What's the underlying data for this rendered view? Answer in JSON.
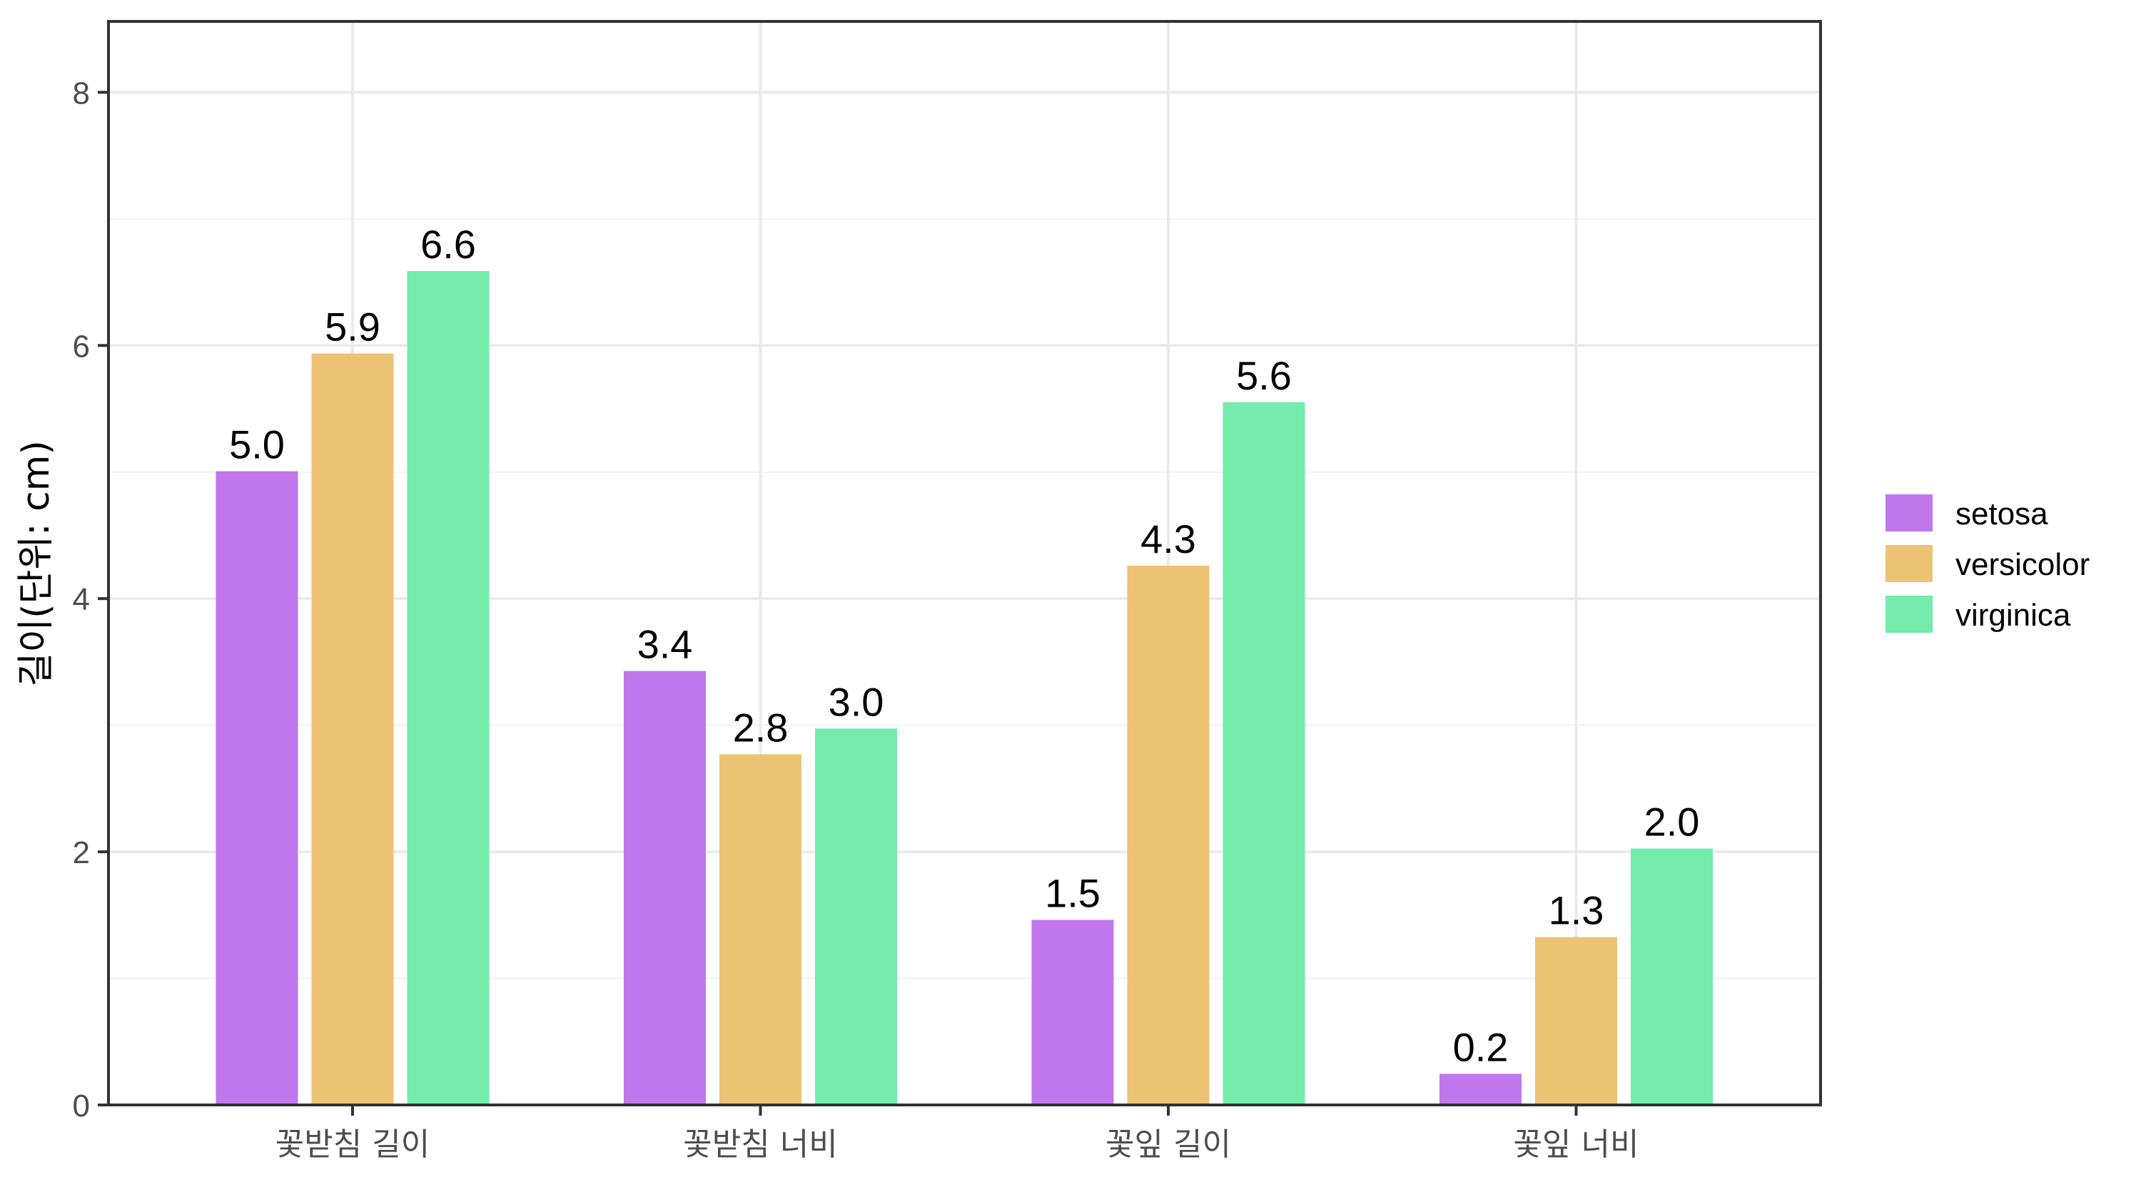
{
  "chart_data": {
    "type": "bar",
    "title": "",
    "xlabel": "",
    "ylabel": "길이(단위: cm)",
    "categories": [
      "꽃받침 길이",
      "꽃받침 너비",
      "꽃잎 길이",
      "꽃잎 너비"
    ],
    "series": [
      {
        "name": "setosa",
        "color": "#C077EC",
        "values": [
          5.006,
          3.428,
          1.462,
          0.246
        ],
        "labels": [
          "5.0",
          "3.4",
          "1.5",
          "0.2"
        ]
      },
      {
        "name": "versicolor",
        "color": "#ECC273",
        "values": [
          5.936,
          2.77,
          4.26,
          1.326
        ],
        "labels": [
          "5.9",
          "2.8",
          "4.3",
          "1.3"
        ]
      },
      {
        "name": "virginica",
        "color": "#73ECAC",
        "values": [
          6.588,
          2.974,
          5.552,
          2.026
        ],
        "labels": [
          "6.6",
          "3.0",
          "5.6",
          "2.0"
        ]
      }
    ],
    "ylim": [
      0,
      8.56
    ],
    "yticks": [
      0,
      2,
      4,
      6,
      8
    ],
    "grid": true,
    "legend_position": "right"
  },
  "legend": {
    "items": [
      {
        "label": "setosa",
        "color": "#C077EC"
      },
      {
        "label": "versicolor",
        "color": "#ECC273"
      },
      {
        "label": "virginica",
        "color": "#73ECAC"
      }
    ]
  },
  "theme": {
    "panel_border": "#333333",
    "grid_major": "#EBEBEB",
    "grid_minor": "#F2F2F2",
    "tick_color": "#333333",
    "tick_label_color": "#4D4D4D"
  }
}
